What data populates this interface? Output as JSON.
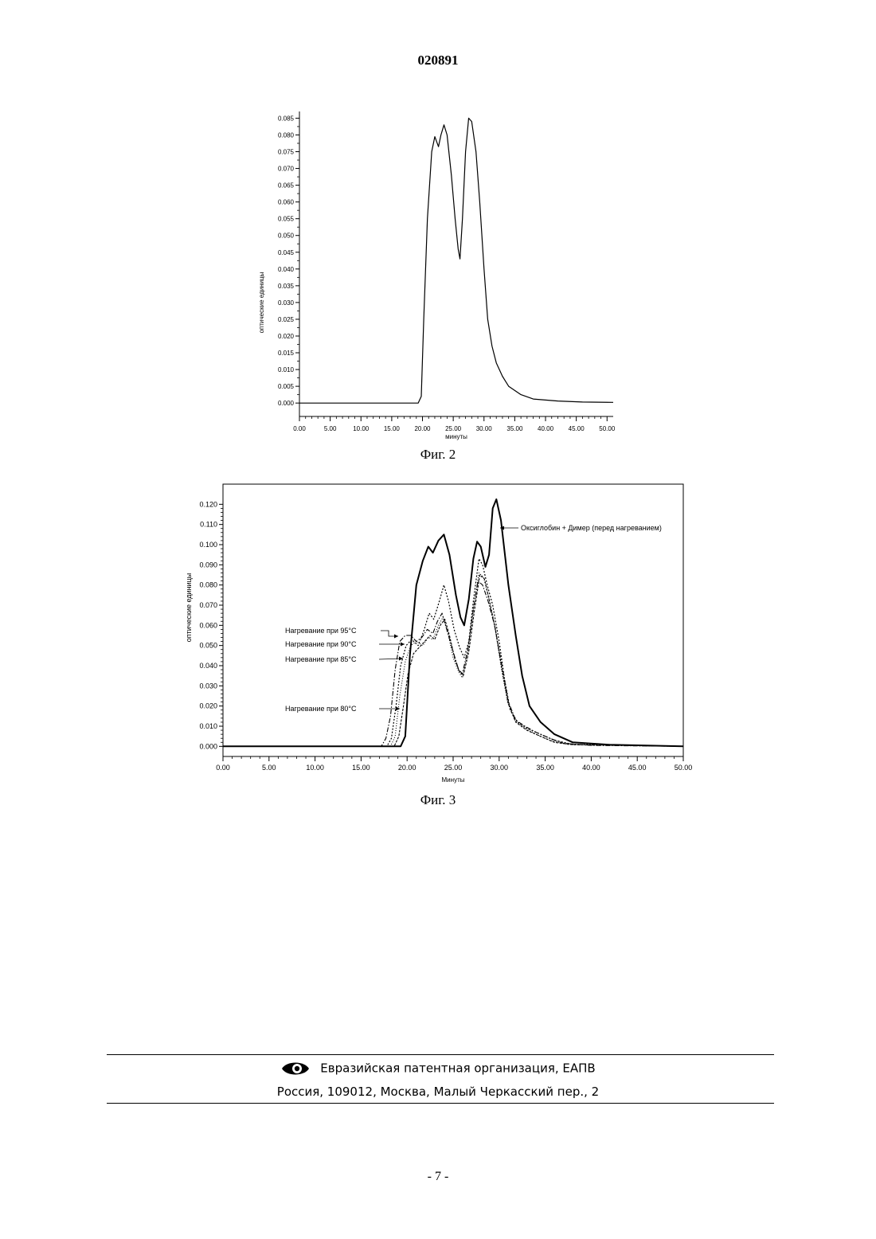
{
  "header": {
    "doc_number": "020891"
  },
  "figures": [
    {
      "caption": "Фиг. 2"
    },
    {
      "caption": "Фиг. 3"
    }
  ],
  "chart_data": [
    {
      "type": "line",
      "title": "",
      "xlabel": "минуты",
      "ylabel": "оптические единицы",
      "xlim": [
        0,
        51
      ],
      "ylim": [
        -0.004,
        0.087
      ],
      "x_ticks": [
        "0.00",
        "5.00",
        "10.00",
        "15.00",
        "20.00",
        "25.00",
        "30.00",
        "35.00",
        "40.00",
        "45.00",
        "50.00"
      ],
      "y_ticks": [
        "0.000",
        "0.005",
        "0.010",
        "0.015",
        "0.020",
        "0.025",
        "0.030",
        "0.035",
        "0.040",
        "0.045",
        "0.050",
        "0.055",
        "0.060",
        "0.065",
        "0.070",
        "0.075",
        "0.080",
        "0.085"
      ],
      "grid": false,
      "series": [
        {
          "points": [
            [
              0,
              0
            ],
            [
              19.3,
              0
            ],
            [
              19.8,
              0.002
            ],
            [
              20.2,
              0.025
            ],
            [
              20.8,
              0.055
            ],
            [
              21.5,
              0.075
            ],
            [
              22,
              0.0795
            ],
            [
              22.6,
              0.0765
            ],
            [
              23,
              0.08
            ],
            [
              23.5,
              0.083
            ],
            [
              24,
              0.08
            ],
            [
              24.7,
              0.068
            ],
            [
              25.3,
              0.055
            ],
            [
              25.8,
              0.046
            ],
            [
              26.1,
              0.043
            ],
            [
              26.5,
              0.055
            ],
            [
              27,
              0.075
            ],
            [
              27.5,
              0.085
            ],
            [
              28,
              0.084
            ],
            [
              28.7,
              0.075
            ],
            [
              29.3,
              0.06
            ],
            [
              30,
              0.04
            ],
            [
              30.6,
              0.025
            ],
            [
              31.3,
              0.017
            ],
            [
              32,
              0.012
            ],
            [
              33,
              0.008
            ],
            [
              34,
              0.005
            ],
            [
              36,
              0.0025
            ],
            [
              38,
              0.0012
            ],
            [
              42,
              0.0006
            ],
            [
              46,
              0.0003
            ],
            [
              51,
              0.0002
            ]
          ]
        }
      ]
    },
    {
      "type": "line",
      "title": "",
      "xlabel": "Минуты",
      "ylabel": "оптические единицы",
      "xlim": [
        0,
        50
      ],
      "ylim": [
        -0.005,
        0.13
      ],
      "x_ticks": [
        "0.00",
        "5.00",
        "10.00",
        "15.00",
        "20.00",
        "25.00",
        "30.00",
        "35.00",
        "40.00",
        "45.00",
        "50.00"
      ],
      "y_ticks": [
        "0.000",
        "0.010",
        "0.020",
        "0.030",
        "0.040",
        "0.050",
        "0.060",
        "0.070",
        "0.080",
        "0.090",
        "0.100",
        "0.110",
        "0.120"
      ],
      "grid": false,
      "series": [
        {
          "name": "Оксиглобин + Димер (перед нагреванием)",
          "points": [
            [
              0,
              0
            ],
            [
              19.3,
              0
            ],
            [
              19.8,
              0.005
            ],
            [
              20.3,
              0.045
            ],
            [
              21,
              0.08
            ],
            [
              21.7,
              0.092
            ],
            [
              22.3,
              0.099
            ],
            [
              22.8,
              0.096
            ],
            [
              23.4,
              0.102
            ],
            [
              24,
              0.105
            ],
            [
              24.6,
              0.095
            ],
            [
              25.3,
              0.075
            ],
            [
              25.8,
              0.064
            ],
            [
              26.2,
              0.06
            ],
            [
              26.7,
              0.073
            ],
            [
              27.2,
              0.093
            ],
            [
              27.6,
              0.1015
            ],
            [
              28,
              0.099
            ],
            [
              28.5,
              0.089
            ],
            [
              28.9,
              0.095
            ],
            [
              29.3,
              0.118
            ],
            [
              29.7,
              0.1225
            ],
            [
              30.2,
              0.112
            ],
            [
              31,
              0.08
            ],
            [
              31.8,
              0.055
            ],
            [
              32.5,
              0.035
            ],
            [
              33.3,
              0.02
            ],
            [
              34.5,
              0.012
            ],
            [
              36,
              0.006
            ],
            [
              38,
              0.002
            ],
            [
              42,
              0.0008
            ],
            [
              50,
              0
            ]
          ]
        },
        {
          "name": "Нагревание при 95°С",
          "points": [
            [
              0,
              0
            ],
            [
              17.2,
              0
            ],
            [
              17.7,
              0.004
            ],
            [
              18.2,
              0.015
            ],
            [
              18.7,
              0.038
            ],
            [
              19.2,
              0.052
            ],
            [
              19.8,
              0.055
            ],
            [
              20.4,
              0.055
            ],
            [
              21,
              0.052
            ],
            [
              21.6,
              0.054
            ],
            [
              22.2,
              0.058
            ],
            [
              22.8,
              0.056
            ],
            [
              23.3,
              0.062
            ],
            [
              23.8,
              0.066
            ],
            [
              24.3,
              0.058
            ],
            [
              25,
              0.047
            ],
            [
              25.6,
              0.038
            ],
            [
              26,
              0.036
            ],
            [
              26.6,
              0.048
            ],
            [
              27.2,
              0.068
            ],
            [
              27.7,
              0.082
            ],
            [
              28.2,
              0.08
            ],
            [
              28.8,
              0.072
            ],
            [
              29.5,
              0.06
            ],
            [
              30.3,
              0.04
            ],
            [
              31,
              0.022
            ],
            [
              31.8,
              0.013
            ],
            [
              32.8,
              0.01
            ],
            [
              34,
              0.007
            ],
            [
              35.5,
              0.004
            ],
            [
              37,
              0.0015
            ],
            [
              40,
              0.0005
            ],
            [
              50,
              0
            ]
          ]
        },
        {
          "name": "Нагревание при 90°С",
          "points": [
            [
              0,
              0
            ],
            [
              17.8,
              0
            ],
            [
              18.3,
              0.004
            ],
            [
              18.8,
              0.02
            ],
            [
              19.3,
              0.04
            ],
            [
              19.9,
              0.05
            ],
            [
              20.5,
              0.053
            ],
            [
              21.2,
              0.05
            ],
            [
              21.8,
              0.057
            ],
            [
              22.4,
              0.066
            ],
            [
              22.9,
              0.063
            ],
            [
              23.5,
              0.072
            ],
            [
              24,
              0.08
            ],
            [
              24.5,
              0.072
            ],
            [
              25.1,
              0.058
            ],
            [
              25.7,
              0.049
            ],
            [
              26.2,
              0.044
            ],
            [
              26.7,
              0.052
            ],
            [
              27.2,
              0.072
            ],
            [
              27.8,
              0.093
            ],
            [
              28.2,
              0.09
            ],
            [
              28.7,
              0.08
            ],
            [
              29.3,
              0.07
            ],
            [
              30,
              0.052
            ],
            [
              30.6,
              0.033
            ],
            [
              31.2,
              0.018
            ],
            [
              32,
              0.012
            ],
            [
              33,
              0.009
            ],
            [
              34.5,
              0.006
            ],
            [
              36,
              0.003
            ],
            [
              38,
              0.001
            ],
            [
              50,
              0
            ]
          ]
        },
        {
          "name": "Нагревание при 85°С",
          "points": [
            [
              0,
              0
            ],
            [
              18.2,
              0
            ],
            [
              18.7,
              0.005
            ],
            [
              19.2,
              0.025
            ],
            [
              19.8,
              0.042
            ],
            [
              20.4,
              0.05
            ],
            [
              21,
              0.052
            ],
            [
              21.7,
              0.05
            ],
            [
              22.3,
              0.054
            ],
            [
              22.8,
              0.053
            ],
            [
              23.4,
              0.06
            ],
            [
              23.9,
              0.064
            ],
            [
              24.4,
              0.057
            ],
            [
              25,
              0.044
            ],
            [
              25.6,
              0.037
            ],
            [
              26,
              0.034
            ],
            [
              26.6,
              0.047
            ],
            [
              27.2,
              0.068
            ],
            [
              27.8,
              0.086
            ],
            [
              28.3,
              0.084
            ],
            [
              28.8,
              0.075
            ],
            [
              29.5,
              0.06
            ],
            [
              30.2,
              0.04
            ],
            [
              30.9,
              0.022
            ],
            [
              31.7,
              0.013
            ],
            [
              32.8,
              0.009
            ],
            [
              34,
              0.006
            ],
            [
              35.5,
              0.003
            ],
            [
              37.5,
              0.001
            ],
            [
              50,
              0
            ]
          ]
        },
        {
          "name": "Нагревание при 80°С",
          "points": [
            [
              0,
              0
            ],
            [
              18.6,
              0
            ],
            [
              19.1,
              0.005
            ],
            [
              19.6,
              0.02
            ],
            [
              20.1,
              0.036
            ],
            [
              20.7,
              0.046
            ],
            [
              21.3,
              0.049
            ],
            [
              21.9,
              0.052
            ],
            [
              22.5,
              0.055
            ],
            [
              23,
              0.053
            ],
            [
              23.6,
              0.06
            ],
            [
              24.1,
              0.063
            ],
            [
              24.6,
              0.055
            ],
            [
              25.2,
              0.043
            ],
            [
              25.7,
              0.037
            ],
            [
              26.1,
              0.035
            ],
            [
              26.7,
              0.047
            ],
            [
              27.3,
              0.067
            ],
            [
              27.9,
              0.085
            ],
            [
              28.4,
              0.083
            ],
            [
              28.9,
              0.073
            ],
            [
              29.6,
              0.058
            ],
            [
              30.3,
              0.038
            ],
            [
              31,
              0.021
            ],
            [
              31.8,
              0.012
            ],
            [
              33,
              0.008
            ],
            [
              34.5,
              0.005
            ],
            [
              36,
              0.002
            ],
            [
              38,
              0.0008
            ],
            [
              50,
              0
            ]
          ]
        }
      ]
    }
  ],
  "footer": {
    "org": "Евразийская патентная организация, ЕАПВ",
    "address": "Россия, 109012, Москва, Малый Черкасский пер., 2"
  },
  "page_number": "- 7 -"
}
